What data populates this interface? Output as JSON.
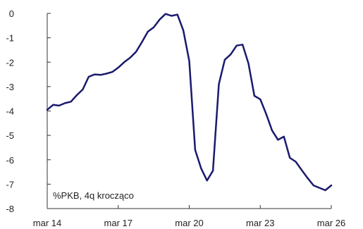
{
  "chart_data": {
    "type": "line",
    "title": "",
    "xlabel": "",
    "ylabel": "",
    "annotation": "%PKB, 4q krocząco",
    "xlim": [
      "2014-03",
      "2026-03"
    ],
    "ylim": [
      -8,
      0
    ],
    "yticks": [
      0,
      -1,
      -2,
      -3,
      -4,
      -5,
      -6,
      -7,
      -8
    ],
    "ytick_labels": [
      "0",
      "-1",
      "-2",
      "-3",
      "-4",
      "-5",
      "-6",
      "-7",
      "-8"
    ],
    "xticks": [
      "2014-03",
      "2017-03",
      "2020-03",
      "2023-03",
      "2026-03"
    ],
    "xtick_labels": [
      "mar 14",
      "mar 17",
      "mar 20",
      "mar 23",
      "mar 26"
    ],
    "grid": false,
    "colors": {
      "line": "#1a1a6e",
      "axis": "#333333"
    },
    "series": [
      {
        "x": [
          "2014-03",
          "2014-06",
          "2014-09",
          "2014-12",
          "2015-03",
          "2015-06",
          "2015-09",
          "2015-12",
          "2016-03",
          "2016-06",
          "2016-09",
          "2016-12",
          "2017-03",
          "2017-06",
          "2017-09",
          "2017-12",
          "2018-03",
          "2018-06",
          "2018-09",
          "2018-12",
          "2019-03",
          "2019-06",
          "2019-09",
          "2019-12",
          "2020-03",
          "2020-06",
          "2020-09",
          "2020-12",
          "2021-03",
          "2021-06",
          "2021-09",
          "2021-12",
          "2022-03",
          "2022-06",
          "2022-09",
          "2022-12",
          "2023-03",
          "2023-06",
          "2023-09",
          "2023-12",
          "2024-03",
          "2024-06",
          "2024-09",
          "2024-12",
          "2025-03",
          "2025-06",
          "2025-09",
          "2025-12",
          "2026-03"
        ],
        "values": [
          -3.95,
          -3.75,
          -3.78,
          -3.68,
          -3.62,
          -3.35,
          -3.12,
          -2.6,
          -2.5,
          -2.52,
          -2.47,
          -2.4,
          -2.22,
          -2.0,
          -1.82,
          -1.58,
          -1.18,
          -0.75,
          -0.57,
          -0.25,
          -0.02,
          -0.1,
          -0.05,
          -0.7,
          -1.95,
          -5.6,
          -6.35,
          -6.85,
          -6.45,
          -2.9,
          -1.9,
          -1.68,
          -1.32,
          -1.28,
          -2.05,
          -3.38,
          -3.52,
          -4.12,
          -4.8,
          -5.18,
          -5.05,
          -5.92,
          -6.08,
          -6.42,
          -6.75,
          -7.05,
          -7.15,
          -7.25,
          -7.05
        ]
      }
    ]
  }
}
